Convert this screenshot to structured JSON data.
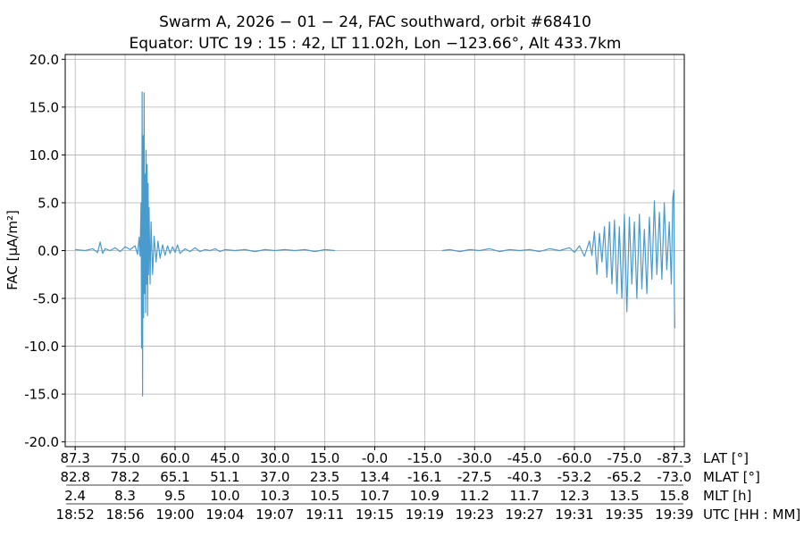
{
  "chart_data": {
    "type": "line",
    "title_line1": "Swarm A,  2026 − 01 − 24,  FAC southward,  orbit #68410",
    "title_line2": "Equator:  UTC 19 : 15 : 42,  LT 11.02h,  Lon  −123.66°,  Alt 433.7km",
    "ylabel": "FAC [µA/m²]",
    "ylim": [
      -20.5,
      20.5
    ],
    "yticks": [
      20.0,
      15.0,
      10.0,
      5.0,
      0.0,
      -5.0,
      -10.0,
      -15.0,
      -20.0
    ],
    "ytick_labels": [
      "20.0",
      "15.0",
      "10.0",
      "5.0",
      "0.0",
      "-5.0",
      "-10.0",
      "-15.0",
      "-20.0"
    ],
    "xlim": [
      -0.2,
      12.2
    ],
    "grid": true,
    "series_color": "#4a9bcd",
    "x_rows": [
      {
        "name": "LAT",
        "label": "LAT [°]",
        "values": [
          "87.3",
          "75.0",
          "60.0",
          "45.0",
          "30.0",
          "15.0",
          "-0.0",
          "-15.0",
          "-30.0",
          "-45.0",
          "-60.0",
          "-75.0",
          "-87.3"
        ]
      },
      {
        "name": "MLAT",
        "label": "MLAT [°]",
        "values": [
          "82.8",
          "78.2",
          "65.1",
          "51.1",
          "37.0",
          "23.5",
          "13.4",
          "-16.1",
          "-27.5",
          "-40.3",
          "-53.2",
          "-65.2",
          "-73.0"
        ]
      },
      {
        "name": "MLT",
        "label": "MLT [h]",
        "values": [
          "2.4",
          "8.3",
          "9.5",
          "10.0",
          "10.3",
          "10.5",
          "10.7",
          "10.9",
          "11.2",
          "11.7",
          "12.3",
          "13.5",
          "15.8"
        ]
      },
      {
        "name": "UTC",
        "label": "UTC [HH : MM]",
        "values": [
          "18:52",
          "18:56",
          "19:00",
          "19:04",
          "19:07",
          "19:11",
          "19:15",
          "19:19",
          "19:23",
          "19:27",
          "19:31",
          "19:35",
          "19:39"
        ]
      }
    ],
    "series": [
      {
        "values": [
          [
            0.0,
            0.1
          ],
          [
            0.2,
            0.0
          ],
          [
            0.35,
            0.2
          ],
          [
            0.45,
            -0.2
          ],
          [
            0.5,
            0.9
          ],
          [
            0.55,
            -0.3
          ],
          [
            0.6,
            0.2
          ],
          [
            0.7,
            0.0
          ],
          [
            0.8,
            0.3
          ],
          [
            0.9,
            -0.1
          ],
          [
            1.0,
            0.4
          ],
          [
            1.1,
            0.1
          ],
          [
            1.2,
            0.5
          ],
          [
            1.25,
            -0.4
          ],
          [
            1.28,
            1.4
          ],
          [
            1.3,
            -0.6
          ],
          [
            1.32,
            5.0
          ],
          [
            1.33,
            -10.2
          ],
          [
            1.34,
            16.6
          ],
          [
            1.35,
            -15.2
          ],
          [
            1.36,
            12.0
          ],
          [
            1.37,
            -7.0
          ],
          [
            1.38,
            16.5
          ],
          [
            1.39,
            -4.5
          ],
          [
            1.4,
            8.0
          ],
          [
            1.41,
            -6.5
          ],
          [
            1.42,
            10.5
          ],
          [
            1.43,
            -3.5
          ],
          [
            1.44,
            9.0
          ],
          [
            1.45,
            -6.8
          ],
          [
            1.46,
            7.0
          ],
          [
            1.47,
            -2.5
          ],
          [
            1.48,
            4.5
          ],
          [
            1.5,
            -3.5
          ],
          [
            1.52,
            3.0
          ],
          [
            1.55,
            -2.5
          ],
          [
            1.58,
            1.5
          ],
          [
            1.62,
            -1.2
          ],
          [
            1.66,
            1.0
          ],
          [
            1.7,
            -0.8
          ],
          [
            1.75,
            0.6
          ],
          [
            1.8,
            -0.5
          ],
          [
            1.85,
            0.5
          ],
          [
            1.9,
            -0.3
          ],
          [
            1.95,
            0.4
          ],
          [
            2.0,
            -0.2
          ],
          [
            2.05,
            0.6
          ],
          [
            2.1,
            -0.3
          ],
          [
            2.2,
            0.2
          ],
          [
            2.3,
            -0.1
          ],
          [
            2.4,
            0.3
          ],
          [
            2.5,
            -0.1
          ],
          [
            2.6,
            0.1
          ],
          [
            2.7,
            0.0
          ],
          [
            2.8,
            0.2
          ],
          [
            2.9,
            -0.1
          ],
          [
            3.0,
            0.1
          ],
          [
            3.2,
            0.0
          ],
          [
            3.4,
            0.1
          ],
          [
            3.6,
            -0.1
          ],
          [
            3.8,
            0.1
          ],
          [
            4.0,
            0.0
          ],
          [
            4.2,
            0.1
          ],
          [
            4.4,
            0.0
          ],
          [
            4.6,
            0.1
          ],
          [
            4.8,
            -0.1
          ],
          [
            5.0,
            0.1
          ],
          [
            5.2,
            0.0
          ],
          null,
          [
            7.35,
            0.0
          ],
          [
            7.5,
            0.1
          ],
          [
            7.7,
            -0.1
          ],
          [
            7.9,
            0.1
          ],
          [
            8.1,
            0.0
          ],
          [
            8.3,
            0.2
          ],
          [
            8.5,
            -0.1
          ],
          [
            8.7,
            0.1
          ],
          [
            8.9,
            0.0
          ],
          [
            9.1,
            0.1
          ],
          [
            9.3,
            -0.1
          ],
          [
            9.5,
            0.2
          ],
          [
            9.7,
            0.0
          ],
          [
            9.9,
            0.3
          ],
          [
            10.0,
            -0.2
          ],
          [
            10.1,
            0.5
          ],
          [
            10.2,
            -0.6
          ],
          [
            10.3,
            1.0
          ],
          [
            10.35,
            -0.5
          ],
          [
            10.4,
            2.0
          ],
          [
            10.45,
            -2.5
          ],
          [
            10.5,
            1.8
          ],
          [
            10.55,
            -1.2
          ],
          [
            10.6,
            2.5
          ],
          [
            10.65,
            -2.8
          ],
          [
            10.7,
            3.0
          ],
          [
            10.75,
            -3.5
          ],
          [
            10.8,
            3.2
          ],
          [
            10.85,
            -4.5
          ],
          [
            10.9,
            2.5
          ],
          [
            10.95,
            -5.0
          ],
          [
            11.0,
            3.8
          ],
          [
            11.05,
            -6.4
          ],
          [
            11.1,
            3.5
          ],
          [
            11.15,
            -3.5
          ],
          [
            11.2,
            3.0
          ],
          [
            11.25,
            -5.0
          ],
          [
            11.3,
            3.8
          ],
          [
            11.35,
            -4.0
          ],
          [
            11.4,
            2.2
          ],
          [
            11.45,
            -4.5
          ],
          [
            11.5,
            3.5
          ],
          [
            11.55,
            -3.0
          ],
          [
            11.6,
            5.2
          ],
          [
            11.65,
            -2.5
          ],
          [
            11.7,
            4.0
          ],
          [
            11.75,
            -3.0
          ],
          [
            11.8,
            5.0
          ],
          [
            11.85,
            -2.0
          ],
          [
            11.9,
            3.0
          ],
          [
            11.94,
            -3.5
          ],
          [
            11.97,
            5.5
          ],
          [
            11.99,
            6.3
          ],
          [
            12.0,
            -4.5
          ],
          [
            12.01,
            -8.1
          ]
        ]
      }
    ]
  }
}
